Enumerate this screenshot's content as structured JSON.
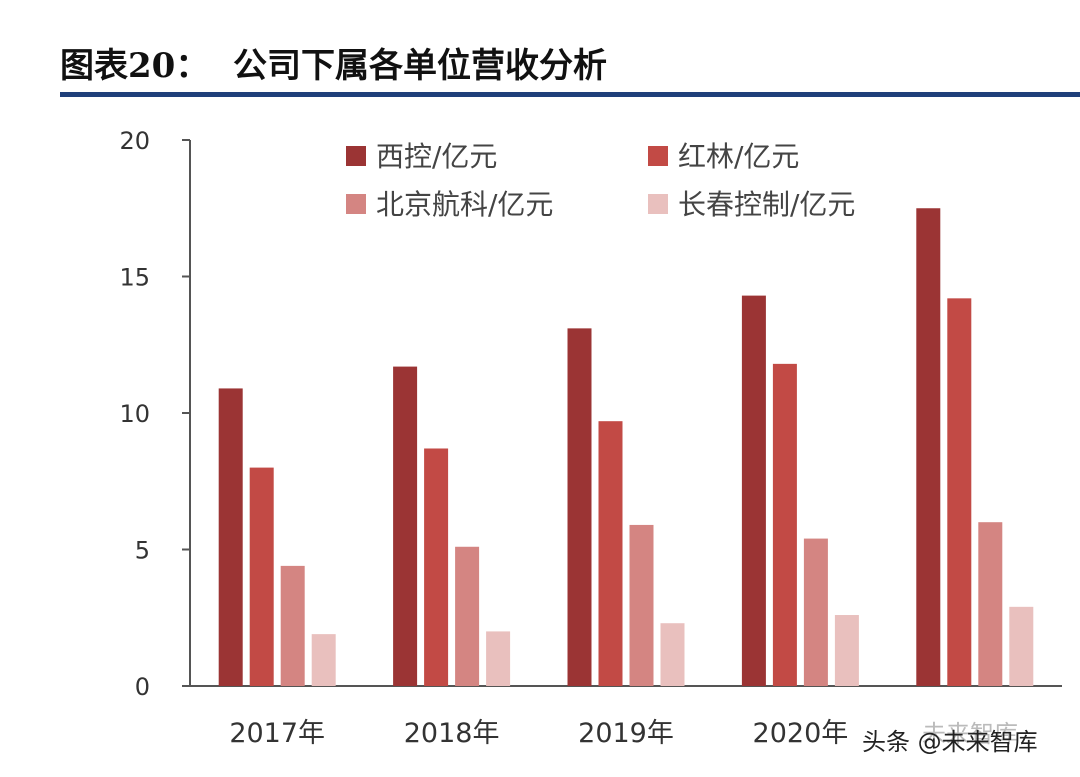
{
  "header": {
    "title": "图表20：  公司下属各单位营收分析"
  },
  "chart_data": {
    "type": "bar",
    "categories": [
      "2017年",
      "2018年",
      "2019年",
      "2020年",
      ""
    ],
    "series": [
      {
        "name": "西控/亿元",
        "color": "#9b3434",
        "values": [
          10.9,
          11.7,
          13.1,
          14.3,
          17.5
        ]
      },
      {
        "name": "红林/亿元",
        "color": "#c24a45",
        "values": [
          8.0,
          8.7,
          9.7,
          11.8,
          14.2
        ]
      },
      {
        "name": "北京航科/亿元",
        "color": "#d48582",
        "values": [
          4.4,
          5.1,
          5.9,
          5.4,
          6.0
        ]
      },
      {
        "name": "长春控制/亿元",
        "color": "#e9c0be",
        "values": [
          1.9,
          2.0,
          2.3,
          2.6,
          2.9
        ]
      }
    ],
    "ylim": [
      0,
      20
    ],
    "yticks": [
      0,
      5,
      10,
      15,
      20
    ],
    "grid": false,
    "legend_position": "top"
  },
  "watermark": {
    "text": "头条 @未来智库",
    "logo_text": "未来智库"
  }
}
